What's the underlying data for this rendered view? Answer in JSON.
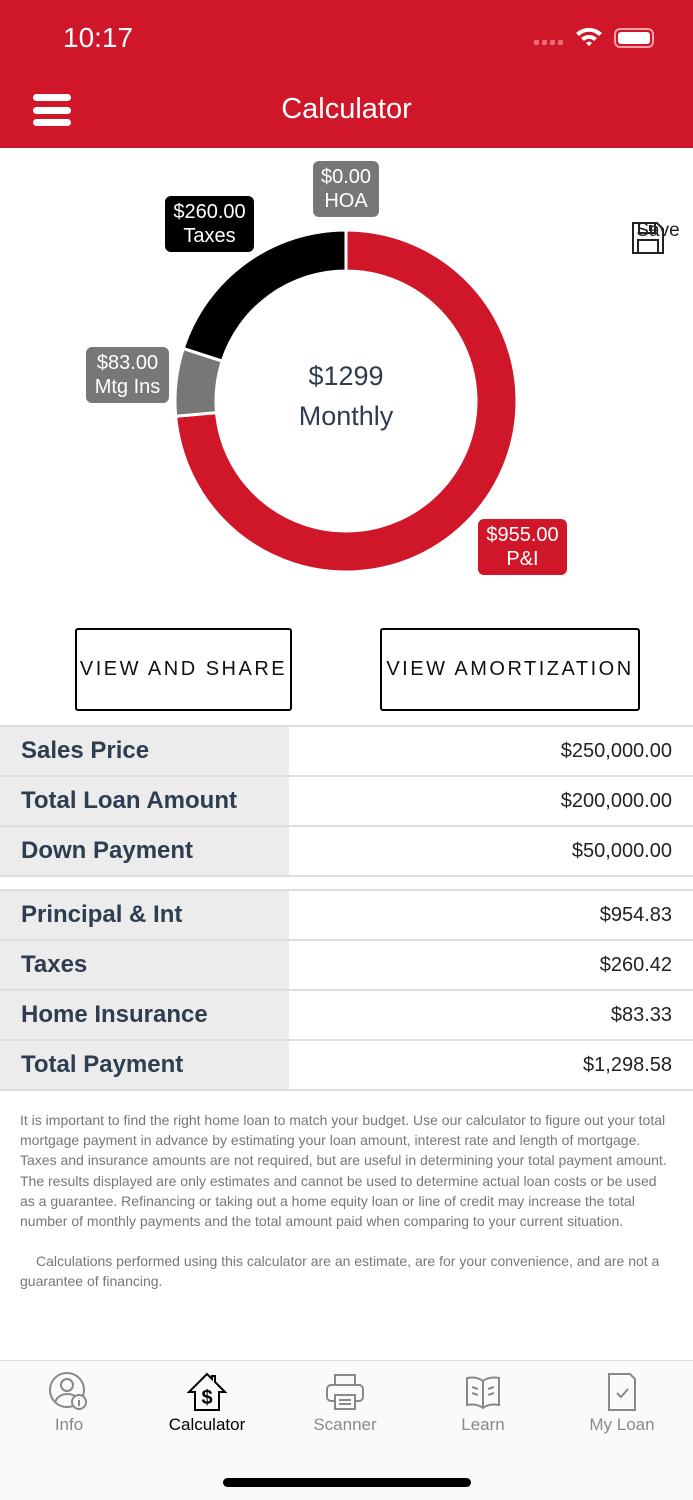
{
  "status_bar": {
    "time": "10:17"
  },
  "header": {
    "title": "Calculator"
  },
  "chart_data": {
    "type": "pie",
    "donut": true,
    "center_value": "$1299",
    "center_label": "Monthly",
    "slices": [
      {
        "name": "P&I",
        "value": 955.0,
        "label": "$955.00",
        "color": "#d0172a"
      },
      {
        "name": "Mtg Ins",
        "value": 83.0,
        "label": "$83.00",
        "color": "#777777"
      },
      {
        "name": "Taxes",
        "value": 260.0,
        "label": "$260.00",
        "color": "#000000"
      },
      {
        "name": "HOA",
        "value": 0.0,
        "label": "$0.00",
        "color": "#777777"
      }
    ]
  },
  "save": {
    "label": "Save",
    "icon": "floppy-disk-icon"
  },
  "buttons": {
    "view_share": "VIEW AND SHARE",
    "view_amortization": "VIEW AMORTIZATION"
  },
  "loan_table": [
    {
      "label": "Sales Price",
      "value": "$250,000.00"
    },
    {
      "label": "Total Loan Amount",
      "value": "$200,000.00"
    },
    {
      "label": "Down Payment",
      "value": "$50,000.00"
    }
  ],
  "payment_table": [
    {
      "label": "Principal & Int",
      "value": "$954.83"
    },
    {
      "label": "Taxes",
      "value": "$260.42"
    },
    {
      "label": "Home Insurance",
      "value": "$83.33"
    },
    {
      "label": "Total Payment",
      "value": "$1,298.58"
    }
  ],
  "disclaimer": [
    "It is important to find the right home loan to match your budget. Use our calculator to figure out your total mortgage payment in advance by estimating your loan amount, interest rate and length of mortgage. Taxes and insurance amounts are not required, but are useful in determining your total payment amount. The results displayed are only estimates and cannot be used to determine actual loan costs or be used as a guarantee. Refinancing or taking out a home equity loan or line of credit may increase the total number of monthly payments and the total amount paid when comparing to your current situation.",
    "Calculations performed using this calculator are an estimate, are for your convenience, and are not a guarantee of financing."
  ],
  "tabs": [
    {
      "label": "Info",
      "icon": "user-info-icon"
    },
    {
      "label": "Calculator",
      "icon": "house-dollar-icon",
      "active": true
    },
    {
      "label": "Scanner",
      "icon": "printer-icon"
    },
    {
      "label": "Learn",
      "icon": "book-icon"
    },
    {
      "label": "My Loan",
      "icon": "document-check-icon"
    }
  ],
  "colors": {
    "brand": "#d0172a"
  }
}
